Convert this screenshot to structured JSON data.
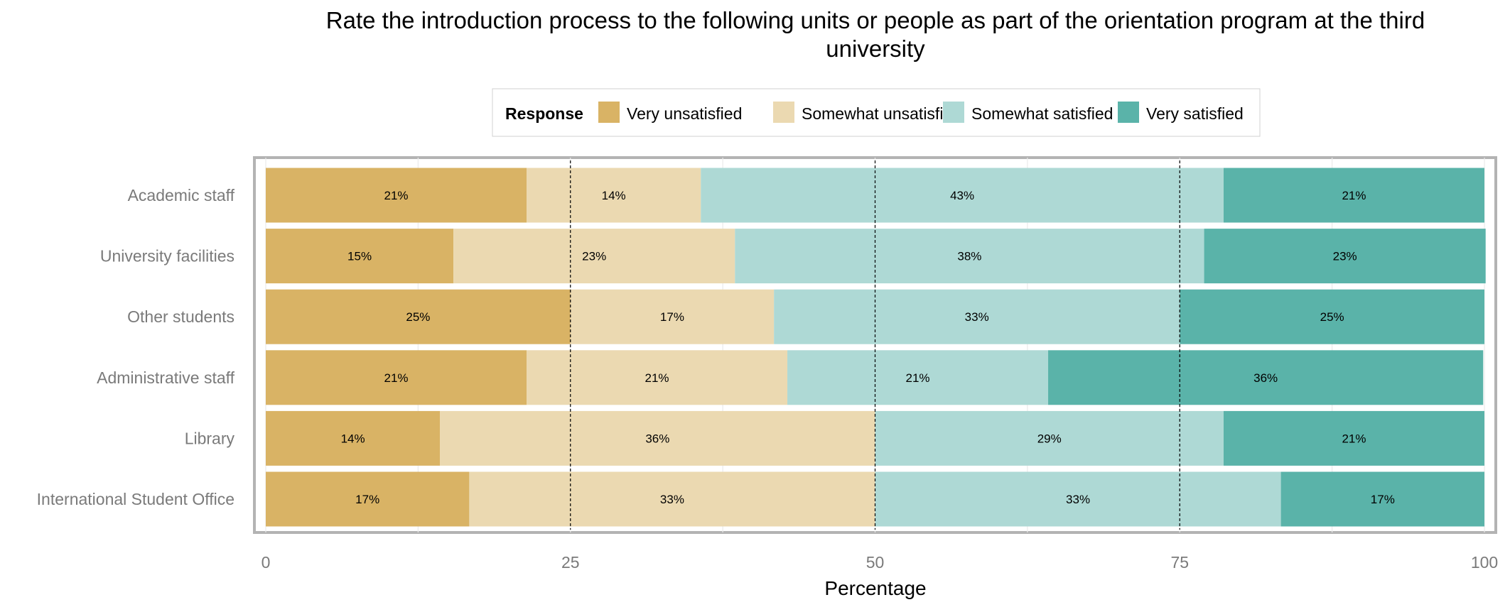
{
  "chart_data": {
    "type": "bar",
    "orientation": "horizontal",
    "stacked": true,
    "title": "Rate the introduction process to the following units or people as part of the orientation program at the third university",
    "title_lines": [
      "Rate the introduction process to the following units or people as part of the orientation program at the third",
      "university"
    ],
    "xlabel": "Percentage",
    "ylabel": "",
    "xlim": [
      0,
      100
    ],
    "x_ticks": [
      "0",
      "25",
      "50",
      "75",
      "100"
    ],
    "reference_lines": [
      25,
      50,
      75
    ],
    "legend": {
      "title": "Response",
      "placement": "top",
      "entries": [
        "Very unsatisfied",
        "Somewhat unsatisfied",
        "Somewhat satisfied",
        "Very satisfied"
      ]
    },
    "categories": [
      "Academic staff",
      "University facilities",
      "Other students",
      "Administrative staff",
      "Library",
      "International Student Office"
    ],
    "series": [
      {
        "name": "Very unsatisfied",
        "color": "#d9b365",
        "values": [
          21.4,
          15.4,
          25,
          21.4,
          14.3,
          16.7
        ],
        "labels": [
          "21%",
          "15%",
          "25%",
          "21%",
          "14%",
          "17%"
        ]
      },
      {
        "name": "Somewhat unsatisfied",
        "color": "#ebd9b1",
        "values": [
          14.3,
          23.1,
          16.7,
          21.4,
          35.7,
          33.3
        ],
        "labels": [
          "14%",
          "23%",
          "17%",
          "21%",
          "36%",
          "33%"
        ]
      },
      {
        "name": "Somewhat satisfied",
        "color": "#aed9d5",
        "values": [
          42.9,
          38.5,
          33.3,
          21.4,
          28.6,
          33.3
        ],
        "labels": [
          "43%",
          "38%",
          "33%",
          "21%",
          "29%",
          "33%"
        ]
      },
      {
        "name": "Very satisfied",
        "color": "#5ab3a9",
        "values": [
          21.4,
          23.1,
          25,
          35.7,
          21.4,
          16.7
        ],
        "labels": [
          "21%",
          "23%",
          "25%",
          "36%",
          "21%",
          "17%"
        ]
      }
    ],
    "grid": true
  }
}
